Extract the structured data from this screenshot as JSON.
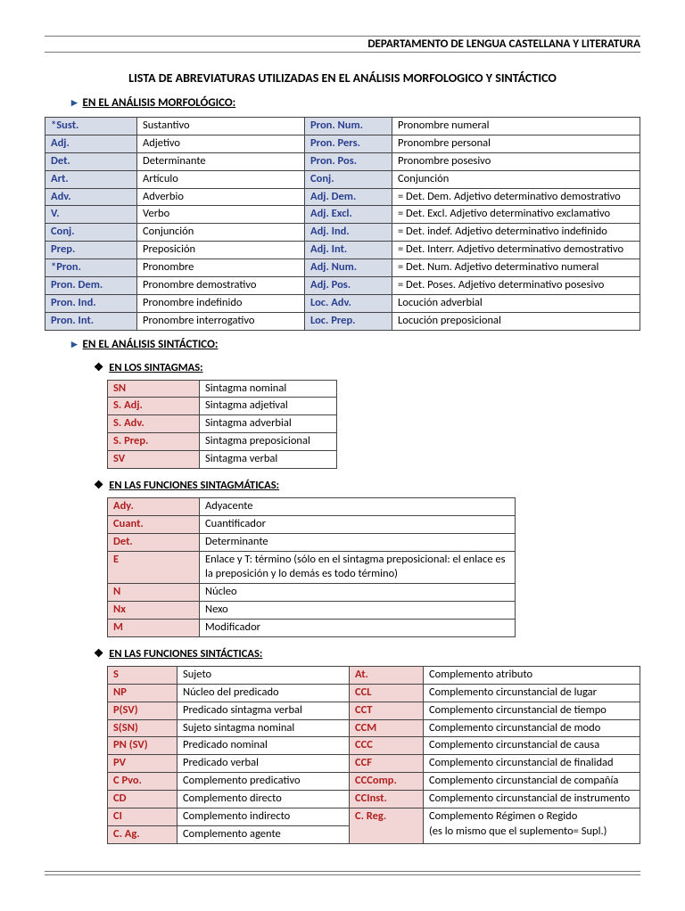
{
  "header": "DEPARTAMENTO DE LENGUA CASTELLANA Y LITERATURA",
  "title": "LISTA DE ABREVIATURAS UTILIZADAS EN EL ANÁLISIS MORFOLOGICO Y SINTÁCTICO",
  "sections": {
    "morph": "EN EL ANÁLISIS MORFOLÓGICO:",
    "synt": "EN EL ANÁLISIS SINTÁCTICO:",
    "sintagmas": "EN LOS SINTAGMAS:",
    "sintagmaticas": "EN LAS FUNCIONES SINTAGMÁTICAS:",
    "sintacticas": "EN LAS FUNCIONES SINTÁCTICAS:"
  },
  "morphTable": [
    [
      "*Sust.",
      "Sustantivo",
      "Pron. Num.",
      "Pronombre numeral"
    ],
    [
      "Adj.",
      "Adjetivo",
      "Pron. Pers.",
      "Pronombre personal"
    ],
    [
      "Det.",
      "Determinante",
      "Pron. Pos.",
      "Pronombre posesivo"
    ],
    [
      "Art.",
      "Artículo",
      "Conj.",
      "Conjunción"
    ],
    [
      "Adv.",
      "Adverbio",
      "Adj. Dem.",
      "= Det. Dem. Adjetivo determinativo demostrativo"
    ],
    [
      "V.",
      "Verbo",
      "Adj. Excl.",
      "= Det. Excl.  Adjetivo determinativo exclamativo"
    ],
    [
      "Conj.",
      "Conjunción",
      "Adj. Ind.",
      "= Det. indef. Adjetivo determinativo indefinido"
    ],
    [
      "Prep.",
      "Preposición",
      "Adj. Int.",
      "= Det. Interr. Adjetivo determinativo demostrativo"
    ],
    [
      "*Pron.",
      "Pronombre",
      "Adj. Num.",
      "= Det. Num. Adjetivo determinativo numeral"
    ],
    [
      "Pron. Dem.",
      "Pronombre demostrativo",
      "Adj. Pos.",
      "= Det. Poses. Adjetivo determinativo posesivo"
    ],
    [
      "Pron. Ind.",
      "Pronombre indefinido",
      "Loc. Adv.",
      "Locución adverbial"
    ],
    [
      "Pron. Int.",
      "Pronombre interrogativo",
      "Loc. Prep.",
      "Locución preposicional"
    ]
  ],
  "sintagmasTable": [
    [
      "SN",
      "Sintagma nominal"
    ],
    [
      "S. Adj.",
      "Sintagma adjetival"
    ],
    [
      "S. Adv.",
      "Sintagma adverbial"
    ],
    [
      "S. Prep.",
      "Sintagma preposicional"
    ],
    [
      "SV",
      "Sintagma verbal"
    ]
  ],
  "sintagmaticasTable": [
    [
      "Ady.",
      "Adyacente"
    ],
    [
      "Cuant.",
      "Cuantificador"
    ],
    [
      "Det.",
      "Determinante"
    ],
    [
      "E",
      "Enlace y T: término (sólo en el sintagma preposicional: el enlace es la preposición y lo demás es todo término)"
    ],
    [
      "N",
      "Núcleo"
    ],
    [
      "Nx",
      "Nexo"
    ],
    [
      "M",
      "Modificador"
    ]
  ],
  "sintacticasLeft": [
    [
      "S",
      "Sujeto"
    ],
    [
      "NP",
      "Núcleo del predicado"
    ],
    [
      "P(SV)",
      "Predicado sintagma verbal"
    ],
    [
      "S(SN)",
      "Sujeto sintagma nominal"
    ],
    [
      "PN (SV)",
      "Predicado nominal"
    ],
    [
      "PV",
      "Predicado verbal"
    ],
    [
      "C Pvo.",
      "Complemento predicativo"
    ],
    [
      "CD",
      "Complemento directo"
    ],
    [
      "CI",
      "Complemento indirecto"
    ],
    [
      "C. Ag.",
      "Complemento agente"
    ]
  ],
  "sintacticasRight": [
    [
      "At.",
      "Complemento atributo"
    ],
    [
      "CCL",
      "Complemento circunstancial de lugar"
    ],
    [
      "CCT",
      "Complemento circunstancial de tiempo"
    ],
    [
      "CCM",
      "Complemento circunstancial de modo"
    ],
    [
      "CCC",
      "Complemento circunstancial de causa"
    ],
    [
      "CCF",
      "Complemento circunstancial de finalidad"
    ],
    [
      "CCComp.",
      "Complemento circunstancial de compañía"
    ],
    [
      "CCInst.",
      "Complemento circunstancial de instrumento"
    ],
    [
      "C. Reg.",
      "Complemento Régimen o Regido\n(es lo mismo que el suplemento= Supl.)"
    ]
  ]
}
